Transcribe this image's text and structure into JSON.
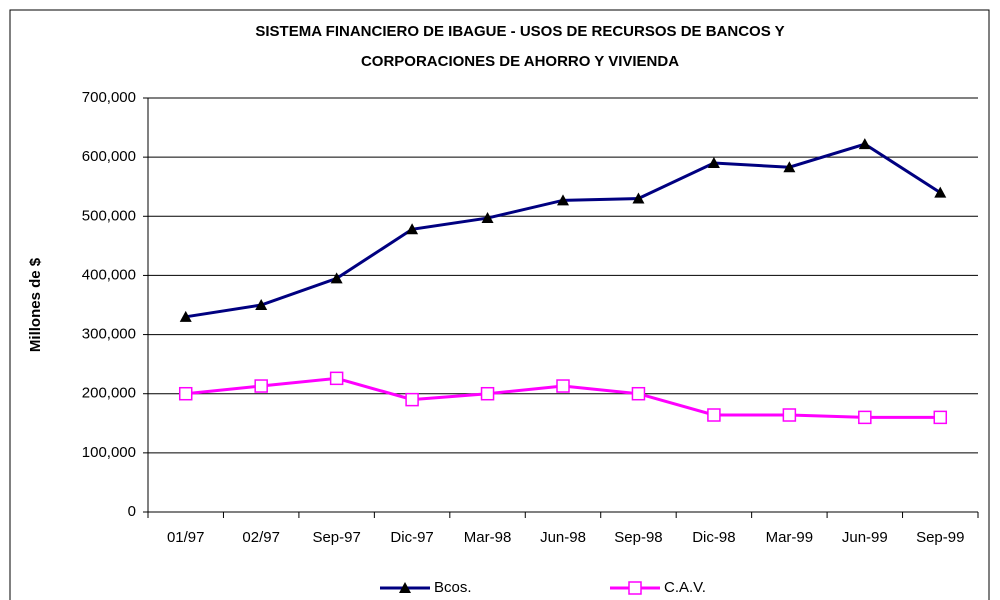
{
  "chart_data": {
    "type": "line",
    "title": [
      "SISTEMA FINANCIERO DE IBAGUE - USOS DE RECURSOS DE BANCOS Y",
      "CORPORACIONES DE AHORRO Y VIVIENDA"
    ],
    "y_label": "Millones de $",
    "categories": [
      "01/97",
      "02/97",
      "Sep-97",
      "Dic-97",
      "Mar-98",
      "Jun-98",
      "Sep-98",
      "Dic-98",
      "Mar-99",
      "Jun-99",
      "Sep-99"
    ],
    "series": [
      {
        "name": "Bcos.",
        "color": "#000080",
        "marker": "triangle",
        "values": [
          330000,
          350000,
          395000,
          478000,
          497000,
          527000,
          530000,
          590000,
          583000,
          622000,
          540000
        ]
      },
      {
        "name": "C.A.V.",
        "color": "#ff00ff",
        "marker": "square",
        "values": [
          200000,
          213000,
          226000,
          190000,
          200000,
          213000,
          200000,
          164000,
          164000,
          160000,
          160000
        ]
      }
    ],
    "ylim": [
      0,
      700000
    ],
    "yticks": [
      0,
      {
        "value": 100000,
        "label": "100,000"
      },
      {
        "value": 200000,
        "label": "200,000"
      },
      {
        "value": 300000,
        "label": "300,000"
      },
      {
        "value": 400000,
        "label": "400,000"
      },
      {
        "value": 500000,
        "label": "500,000"
      },
      {
        "value": 600000,
        "label": "600,000"
      },
      {
        "value": 700000,
        "label": "700,000"
      }
    ],
    "grid": true,
    "legend": "bottom"
  }
}
